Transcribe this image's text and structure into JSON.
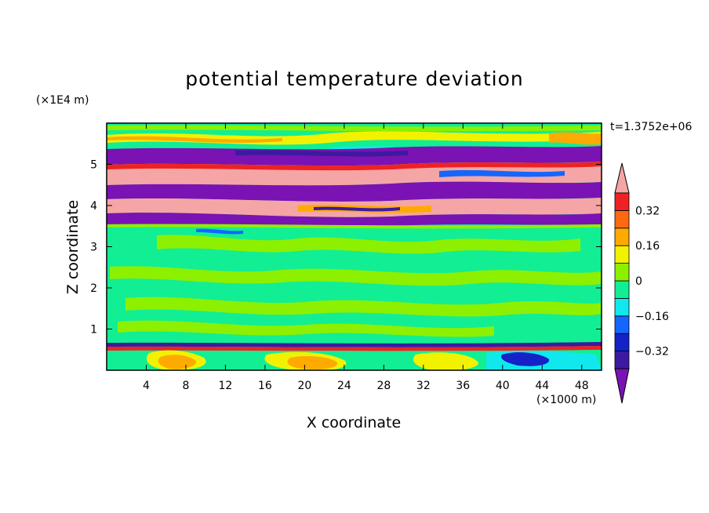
{
  "chart_data": {
    "type": "heatmap",
    "title": "potential temperature deviation",
    "xlabel": "X coordinate",
    "ylabel": "Z coordinate",
    "x_unit_label": "(×1000 m)",
    "y_unit_label": "(×1E4 m)",
    "time_label": "t=1.3752e+06",
    "xlim": [
      0,
      50
    ],
    "ylim": [
      0,
      6
    ],
    "x_ticks": [
      "4",
      "8",
      "12",
      "16",
      "20",
      "24",
      "28",
      "32",
      "36",
      "40",
      "44",
      "48"
    ],
    "y_ticks": [
      "1",
      "2",
      "3",
      "4",
      "5"
    ],
    "colorbar": {
      "levels": [
        -0.4,
        -0.32,
        -0.24,
        -0.16,
        -0.08,
        0,
        0.08,
        0.16,
        0.24,
        0.32,
        0.4
      ],
      "tick_labels": [
        "0.32",
        "0.16",
        "0",
        "−0.16",
        "−0.32"
      ],
      "tick_values": [
        0.32,
        0.16,
        0,
        -0.16,
        -0.32
      ],
      "colors": [
        "#7a12b4",
        "#3c1aa0",
        "#1422c8",
        "#1466ff",
        "#10e8ee",
        "#12ee94",
        "#8cf000",
        "#f2f200",
        "#ffaa00",
        "#ff6a10",
        "#ee2222",
        "#f5a5a5"
      ]
    },
    "bands": [
      {
        "z": [
          0.0,
          0.55
        ],
        "value": "mixed, mostly near-zero with warm (orange/red) patches and cool (blue) patches"
      },
      {
        "z": [
          0.55,
          0.62
        ],
        "value": "thin strong-cold line (dark blue)"
      },
      {
        "z": [
          0.62,
          3.5
        ],
        "value": "near-zero (green / light green) turbulent layer"
      },
      {
        "z": [
          3.6,
          3.9
        ],
        "value": "cold (purple) band"
      },
      {
        "z": [
          3.9,
          4.3
        ],
        "value": "warm (pink, > 0.4) band"
      },
      {
        "z": [
          4.3,
          4.6
        ],
        "value": "cold (purple) band"
      },
      {
        "z": [
          4.6,
          5.0
        ],
        "value": "warm (pink, > 0.4) band"
      },
      {
        "z": [
          5.0,
          5.3
        ],
        "value": "cold (purple) band"
      },
      {
        "z": [
          5.3,
          6.0
        ],
        "value": "near-zero with warm (yellow/orange) streaks"
      }
    ]
  }
}
